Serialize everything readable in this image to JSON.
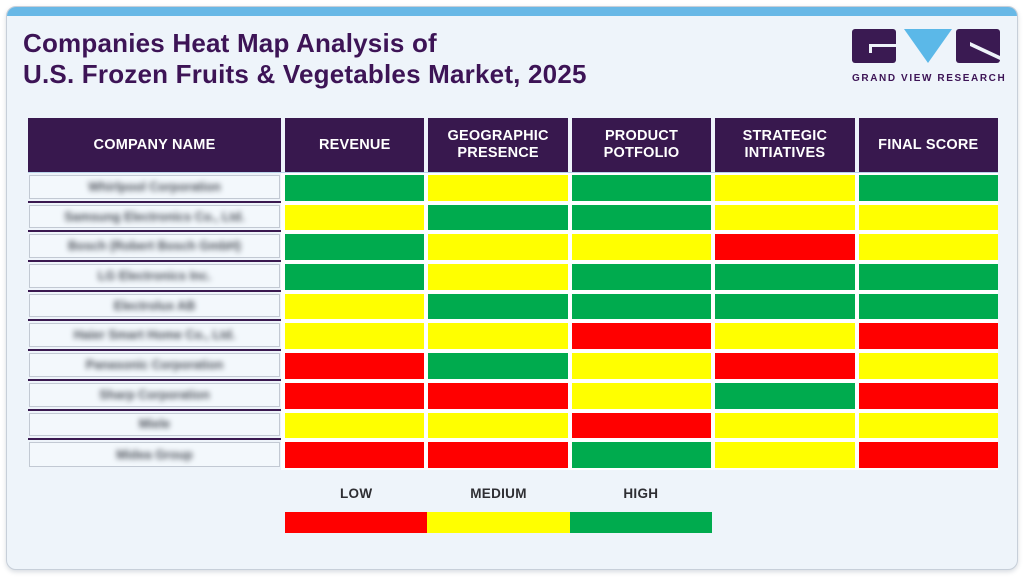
{
  "title": {
    "line1": "Companies Heat Map Analysis of",
    "line2": "U.S. Frozen Fruits & Vegetables Market, 2025",
    "color": "#3D1456"
  },
  "logo": {
    "brand": "GRAND VIEW RESEARCH",
    "purple": "#3A1A52",
    "blue": "#5BB8E8"
  },
  "table": {
    "header_bg": "#38184E",
    "columns": [
      "COMPANY NAME",
      "REVENUE",
      "GEOGRAPHIC PRESENCE",
      "PRODUCT POTFOLIO",
      "STRATEGIC INTIATIVES",
      "FINAL SCORE"
    ],
    "company_names_blurred": true,
    "rows": [
      {
        "company": "Whirlpool Corporation",
        "scores": [
          "high",
          "medium",
          "high",
          "medium",
          "high"
        ]
      },
      {
        "company": "Samsung Electronics Co., Ltd.",
        "scores": [
          "medium",
          "high",
          "high",
          "medium",
          "medium"
        ]
      },
      {
        "company": "Bosch (Robert Bosch GmbH)",
        "scores": [
          "high",
          "medium",
          "medium",
          "low",
          "medium"
        ]
      },
      {
        "company": "LG Electronics Inc.",
        "scores": [
          "high",
          "medium",
          "high",
          "high",
          "high"
        ]
      },
      {
        "company": "Electrolux AB",
        "scores": [
          "medium",
          "high",
          "high",
          "high",
          "high"
        ]
      },
      {
        "company": "Haier Smart Home Co., Ltd.",
        "scores": [
          "medium",
          "medium",
          "low",
          "medium",
          "low"
        ]
      },
      {
        "company": "Panasonic Corporation",
        "scores": [
          "low",
          "high",
          "medium",
          "low",
          "medium"
        ]
      },
      {
        "company": "Sharp Corporation",
        "scores": [
          "low",
          "low",
          "medium",
          "high",
          "low"
        ]
      },
      {
        "company": "Miele",
        "scores": [
          "medium",
          "medium",
          "low",
          "medium",
          "medium"
        ]
      },
      {
        "company": "Midea Group",
        "scores": [
          "low",
          "low",
          "high",
          "medium",
          "low"
        ]
      }
    ]
  },
  "legend": {
    "labels": [
      "LOW",
      "MEDIUM",
      "HIGH"
    ],
    "colors": {
      "low": "#FF0000",
      "medium": "#FFFF00",
      "high": "#00AB4E"
    }
  },
  "chart_data": {
    "type": "heatmap",
    "title": "Companies Heat Map Analysis of U.S. Frozen Fruits & Vegetables Market, 2025",
    "columns": [
      "Revenue",
      "Geographic Presence",
      "Product Potfolio",
      "Strategic Intiatives",
      "Final Score"
    ],
    "rows": [
      "Whirlpool Corporation",
      "Samsung Electronics Co., Ltd.",
      "Bosch (Robert Bosch GmbH)",
      "LG Electronics Inc.",
      "Electrolux AB",
      "Haier Smart Home Co., Ltd.",
      "Panasonic Corporation",
      "Sharp Corporation",
      "Miele",
      "Midea Group"
    ],
    "values": [
      [
        "high",
        "medium",
        "high",
        "medium",
        "high"
      ],
      [
        "medium",
        "high",
        "high",
        "medium",
        "medium"
      ],
      [
        "high",
        "medium",
        "medium",
        "low",
        "medium"
      ],
      [
        "high",
        "medium",
        "high",
        "high",
        "high"
      ],
      [
        "medium",
        "high",
        "high",
        "high",
        "high"
      ],
      [
        "medium",
        "medium",
        "low",
        "medium",
        "low"
      ],
      [
        "low",
        "high",
        "medium",
        "low",
        "medium"
      ],
      [
        "low",
        "low",
        "medium",
        "high",
        "low"
      ],
      [
        "medium",
        "medium",
        "low",
        "medium",
        "medium"
      ],
      [
        "low",
        "low",
        "high",
        "medium",
        "low"
      ]
    ],
    "scale": {
      "low": "#FF0000",
      "medium": "#FFFF00",
      "high": "#00AB4E"
    },
    "legend_labels": [
      "LOW",
      "MEDIUM",
      "HIGH"
    ],
    "legend_position": "bottom",
    "notes": "Row labels are blurred/redacted in the source image"
  }
}
